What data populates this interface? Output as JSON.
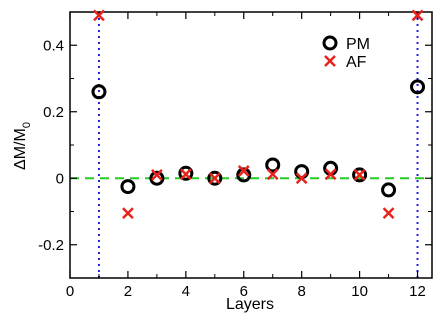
{
  "chart_data": {
    "type": "scatter",
    "title": "",
    "xlabel": "Layers",
    "ylabel_main": "ΔM/M",
    "ylabel_sub": "0",
    "xlim": [
      0,
      12.5
    ],
    "ylim": [
      -0.3,
      0.5
    ],
    "x_ticks": [
      0,
      2,
      4,
      6,
      8,
      10,
      12
    ],
    "x_tick_labels": [
      "0",
      "2",
      "4",
      "6",
      "8",
      "10",
      "12"
    ],
    "y_ticks": [
      -0.2,
      0,
      0.2,
      0.4
    ],
    "y_tick_labels": [
      "-0.2",
      "0",
      "0.2",
      "0.4"
    ],
    "legend_position": "top-right",
    "series": [
      {
        "name": "PM",
        "marker": "circle",
        "color": "#000000",
        "x": [
          1,
          2,
          3,
          4,
          5,
          6,
          7,
          8,
          9,
          10,
          11,
          12
        ],
        "y": [
          0.26,
          -0.025,
          0.0,
          0.015,
          0.0,
          0.01,
          0.04,
          0.02,
          0.03,
          0.01,
          -0.035,
          0.275
        ]
      },
      {
        "name": "AF",
        "marker": "x",
        "color": "#e8221c",
        "x": [
          1,
          2,
          3,
          4,
          5,
          6,
          7,
          8,
          9,
          10,
          11,
          12
        ],
        "y": [
          0.49,
          -0.105,
          0.01,
          0.012,
          0.0,
          0.022,
          0.012,
          0.0,
          0.012,
          0.01,
          -0.105,
          0.49
        ]
      }
    ],
    "reference_lines": [
      {
        "kind": "horizontal",
        "value": 0,
        "style": "dashed",
        "color": "#22cc22"
      },
      {
        "kind": "vertical",
        "value": 1,
        "style": "dotted",
        "color": "#2222dd"
      },
      {
        "kind": "vertical",
        "value": 12,
        "style": "dotted",
        "color": "#2222dd"
      }
    ]
  }
}
